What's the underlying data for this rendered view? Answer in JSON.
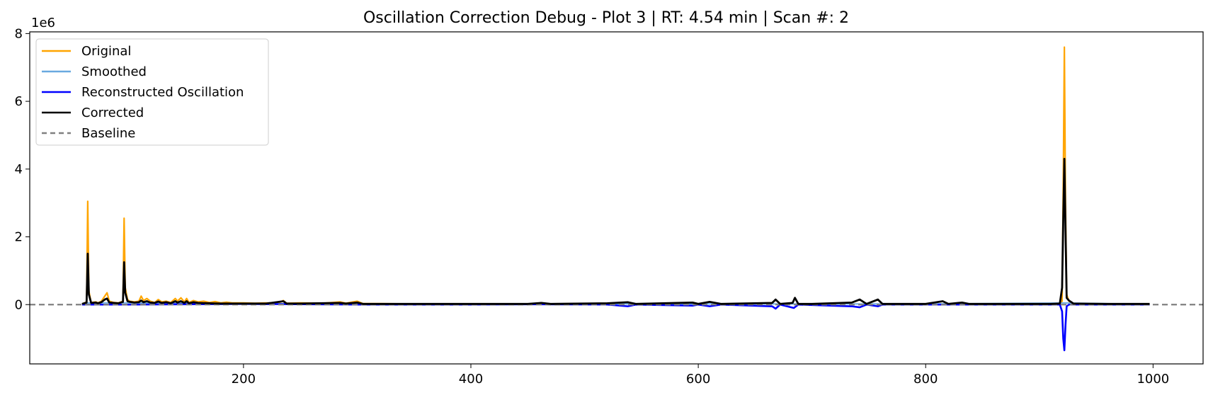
{
  "chart_data": {
    "type": "line",
    "title": "Oscillation Correction Debug - Plot 3 | RT: 4.54 min | Scan #: 2",
    "xlabel": "",
    "ylabel": "",
    "y_offset_label": "1e6",
    "xlim": [
      12,
      1044
    ],
    "ylim": [
      -1.75,
      8.05
    ],
    "x_ticks": [
      200,
      400,
      600,
      800,
      1000
    ],
    "x_tick_labels": [
      "200",
      "400",
      "600",
      "800",
      "1000"
    ],
    "y_ticks": [
      0,
      2,
      4,
      6,
      8
    ],
    "y_tick_labels": [
      "0",
      "2",
      "4",
      "6",
      "8"
    ],
    "grid": false,
    "legend_position": "upper-left",
    "legend": [
      {
        "label": "Original",
        "color": "#ffa500",
        "style": "solid"
      },
      {
        "label": "Smoothed",
        "color": "#6aa9e0",
        "style": "solid"
      },
      {
        "label": "Reconstructed Oscillation",
        "color": "#0000ff",
        "style": "solid"
      },
      {
        "label": "Corrected",
        "color": "#000000",
        "style": "solid"
      },
      {
        "label": "Baseline",
        "color": "#808080",
        "style": "dashed"
      }
    ],
    "series": [
      {
        "name": "Original",
        "color": "#ffa500",
        "points": [
          [
            58,
            0.02
          ],
          [
            60,
            0.05
          ],
          [
            62,
            0.08
          ],
          [
            63,
            3.05
          ],
          [
            64,
            0.4
          ],
          [
            66,
            0.06
          ],
          [
            70,
            0.08
          ],
          [
            72,
            0.05
          ],
          [
            75,
            0.1
          ],
          [
            78,
            0.25
          ],
          [
            80,
            0.35
          ],
          [
            82,
            0.1
          ],
          [
            86,
            0.06
          ],
          [
            90,
            0.05
          ],
          [
            94,
            0.1
          ],
          [
            95,
            2.55
          ],
          [
            96,
            0.5
          ],
          [
            98,
            0.15
          ],
          [
            100,
            0.1
          ],
          [
            104,
            0.08
          ],
          [
            108,
            0.1
          ],
          [
            110,
            0.25
          ],
          [
            112,
            0.12
          ],
          [
            115,
            0.18
          ],
          [
            118,
            0.1
          ],
          [
            122,
            0.06
          ],
          [
            125,
            0.15
          ],
          [
            128,
            0.08
          ],
          [
            132,
            0.1
          ],
          [
            136,
            0.06
          ],
          [
            140,
            0.18
          ],
          [
            142,
            0.1
          ],
          [
            145,
            0.2
          ],
          [
            148,
            0.08
          ],
          [
            150,
            0.18
          ],
          [
            152,
            0.06
          ],
          [
            156,
            0.12
          ],
          [
            160,
            0.08
          ],
          [
            165,
            0.1
          ],
          [
            170,
            0.06
          ],
          [
            175,
            0.09
          ],
          [
            180,
            0.05
          ],
          [
            185,
            0.07
          ],
          [
            190,
            0.05
          ],
          [
            200,
            0.05
          ],
          [
            210,
            0.04
          ],
          [
            220,
            0.05
          ],
          [
            230,
            0.04
          ],
          [
            235,
            0.12
          ],
          [
            238,
            0.04
          ],
          [
            250,
            0.05
          ],
          [
            270,
            0.04
          ],
          [
            285,
            0.08
          ],
          [
            290,
            0.04
          ],
          [
            300,
            0.1
          ],
          [
            305,
            0.03
          ],
          [
            320,
            0.03
          ],
          [
            350,
            0.02
          ],
          [
            400,
            0.02
          ],
          [
            450,
            0.02
          ],
          [
            462,
            0.05
          ],
          [
            470,
            0.02
          ],
          [
            520,
            0.04
          ],
          [
            538,
            0.07
          ],
          [
            545,
            0.02
          ],
          [
            595,
            0.06
          ],
          [
            600,
            0.02
          ],
          [
            610,
            0.08
          ],
          [
            620,
            0.02
          ],
          [
            665,
            0.05
          ],
          [
            668,
            0.15
          ],
          [
            672,
            0.02
          ],
          [
            683,
            0.05
          ],
          [
            685,
            0.2
          ],
          [
            688,
            0.02
          ],
          [
            700,
            0.02
          ],
          [
            735,
            0.05
          ],
          [
            742,
            0.15
          ],
          [
            748,
            0.02
          ],
          [
            758,
            0.15
          ],
          [
            762,
            0.02
          ],
          [
            800,
            0.02
          ],
          [
            815,
            0.1
          ],
          [
            820,
            0.02
          ],
          [
            832,
            0.06
          ],
          [
            838,
            0.02
          ],
          [
            880,
            0.02
          ],
          [
            910,
            0.02
          ],
          [
            918,
            0.03
          ],
          [
            920,
            0.1
          ],
          [
            921,
            3.5
          ],
          [
            922,
            7.6
          ],
          [
            923,
            3.0
          ],
          [
            924,
            0.3
          ],
          [
            926,
            0.1
          ],
          [
            930,
            0.03
          ],
          [
            960,
            0.02
          ],
          [
            997,
            0.02
          ]
        ]
      },
      {
        "name": "Smoothed",
        "color": "#6aa9e0",
        "points": [
          [
            58,
            0.01
          ],
          [
            63,
            0.05
          ],
          [
            95,
            0.05
          ],
          [
            200,
            0.03
          ],
          [
            400,
            0.02
          ],
          [
            600,
            0.02
          ],
          [
            800,
            0.02
          ],
          [
            922,
            0.05
          ],
          [
            997,
            0.01
          ]
        ]
      },
      {
        "name": "Reconstructed Oscillation",
        "color": "#0000ff",
        "points": [
          [
            58,
            0.0
          ],
          [
            100,
            0.0
          ],
          [
            200,
            0.02
          ],
          [
            300,
            0.0
          ],
          [
            400,
            0.0
          ],
          [
            450,
            0.01
          ],
          [
            520,
            0.0
          ],
          [
            538,
            -0.05
          ],
          [
            545,
            0.0
          ],
          [
            595,
            -0.03
          ],
          [
            600,
            0.0
          ],
          [
            610,
            -0.05
          ],
          [
            620,
            0.0
          ],
          [
            665,
            -0.05
          ],
          [
            668,
            -0.12
          ],
          [
            672,
            0.0
          ],
          [
            684,
            -0.1
          ],
          [
            688,
            0.0
          ],
          [
            735,
            -0.05
          ],
          [
            742,
            -0.08
          ],
          [
            748,
            0.0
          ],
          [
            758,
            -0.05
          ],
          [
            762,
            0.0
          ],
          [
            800,
            0.0
          ],
          [
            880,
            0.0
          ],
          [
            918,
            0.0
          ],
          [
            920,
            -0.2
          ],
          [
            921,
            -1.0
          ],
          [
            922,
            -1.35
          ],
          [
            923,
            -0.6
          ],
          [
            924,
            -0.05
          ],
          [
            926,
            0.0
          ],
          [
            997,
            0.0
          ]
        ]
      },
      {
        "name": "Corrected",
        "color": "#000000",
        "points": [
          [
            58,
            0.02
          ],
          [
            60,
            0.04
          ],
          [
            62,
            0.06
          ],
          [
            63,
            1.5
          ],
          [
            64,
            0.3
          ],
          [
            66,
            0.05
          ],
          [
            70,
            0.06
          ],
          [
            72,
            0.04
          ],
          [
            75,
            0.07
          ],
          [
            78,
            0.15
          ],
          [
            80,
            0.18
          ],
          [
            82,
            0.06
          ],
          [
            86,
            0.05
          ],
          [
            90,
            0.04
          ],
          [
            94,
            0.08
          ],
          [
            95,
            1.25
          ],
          [
            96,
            0.35
          ],
          [
            98,
            0.1
          ],
          [
            100,
            0.08
          ],
          [
            104,
            0.06
          ],
          [
            108,
            0.07
          ],
          [
            110,
            0.12
          ],
          [
            112,
            0.07
          ],
          [
            115,
            0.1
          ],
          [
            118,
            0.06
          ],
          [
            122,
            0.05
          ],
          [
            125,
            0.09
          ],
          [
            128,
            0.05
          ],
          [
            132,
            0.07
          ],
          [
            136,
            0.04
          ],
          [
            140,
            0.1
          ],
          [
            142,
            0.06
          ],
          [
            145,
            0.1
          ],
          [
            148,
            0.05
          ],
          [
            150,
            0.1
          ],
          [
            152,
            0.04
          ],
          [
            156,
            0.07
          ],
          [
            160,
            0.05
          ],
          [
            170,
            0.04
          ],
          [
            180,
            0.03
          ],
          [
            200,
            0.03
          ],
          [
            220,
            0.03
          ],
          [
            235,
            0.1
          ],
          [
            238,
            0.03
          ],
          [
            250,
            0.03
          ],
          [
            285,
            0.05
          ],
          [
            290,
            0.03
          ],
          [
            300,
            0.06
          ],
          [
            305,
            0.02
          ],
          [
            350,
            0.02
          ],
          [
            400,
            0.02
          ],
          [
            450,
            0.02
          ],
          [
            462,
            0.05
          ],
          [
            470,
            0.02
          ],
          [
            520,
            0.04
          ],
          [
            538,
            0.07
          ],
          [
            545,
            0.02
          ],
          [
            595,
            0.06
          ],
          [
            600,
            0.02
          ],
          [
            610,
            0.08
          ],
          [
            620,
            0.02
          ],
          [
            665,
            0.05
          ],
          [
            668,
            0.15
          ],
          [
            672,
            0.02
          ],
          [
            683,
            0.05
          ],
          [
            685,
            0.2
          ],
          [
            688,
            0.02
          ],
          [
            700,
            0.02
          ],
          [
            735,
            0.06
          ],
          [
            742,
            0.15
          ],
          [
            748,
            0.02
          ],
          [
            758,
            0.15
          ],
          [
            762,
            0.02
          ],
          [
            800,
            0.02
          ],
          [
            815,
            0.1
          ],
          [
            820,
            0.02
          ],
          [
            832,
            0.06
          ],
          [
            838,
            0.02
          ],
          [
            880,
            0.02
          ],
          [
            910,
            0.02
          ],
          [
            918,
            0.03
          ],
          [
            920,
            0.5
          ],
          [
            921,
            2.5
          ],
          [
            922,
            4.3
          ],
          [
            923,
            2.2
          ],
          [
            924,
            0.2
          ],
          [
            926,
            0.12
          ],
          [
            930,
            0.03
          ],
          [
            960,
            0.02
          ],
          [
            997,
            0.02
          ]
        ]
      },
      {
        "name": "Baseline",
        "color": "#808080",
        "dashed": true,
        "constant": 0
      }
    ]
  }
}
